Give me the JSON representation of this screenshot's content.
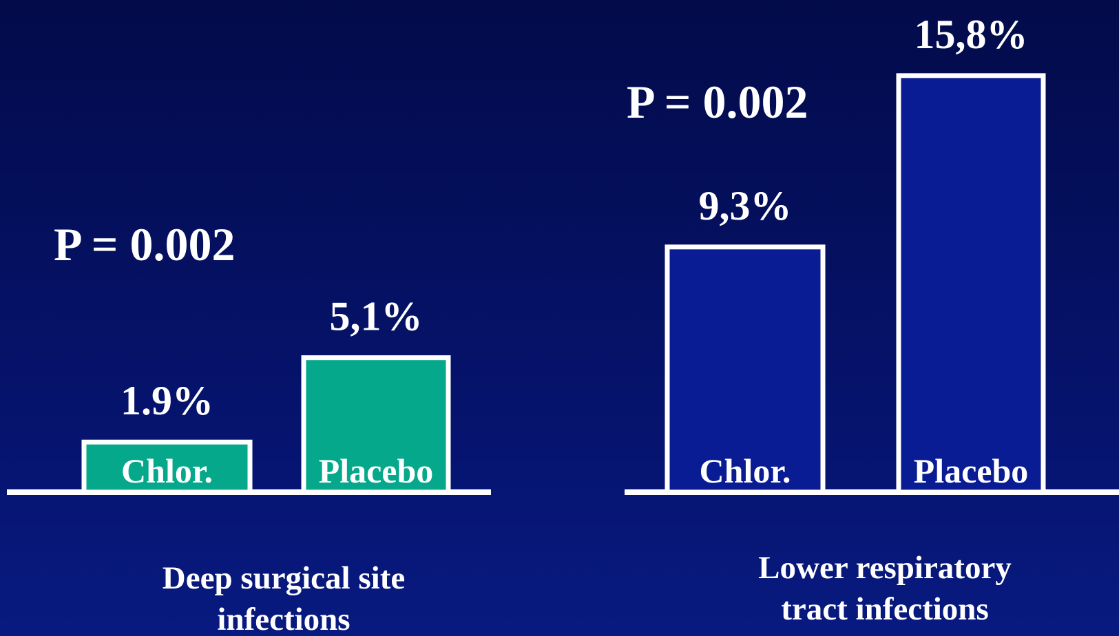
{
  "chart_data": [
    {
      "type": "bar",
      "title": "Deep surgical site infections",
      "annotation": "P = 0.002",
      "categories": [
        "Chlor.",
        "Placebo"
      ],
      "values": [
        1.9,
        5.1
      ],
      "value_labels": [
        "1.9%",
        "5,1%"
      ],
      "color": "#05a88a"
    },
    {
      "type": "bar",
      "title": "Lower respiratory tract infections",
      "annotation": "P = 0.002",
      "categories": [
        "Chlor.",
        "Placebo"
      ],
      "values": [
        9.3,
        15.8
      ],
      "value_labels": [
        "9,3%",
        "15,8%"
      ],
      "color": "#0a1c94"
    }
  ]
}
